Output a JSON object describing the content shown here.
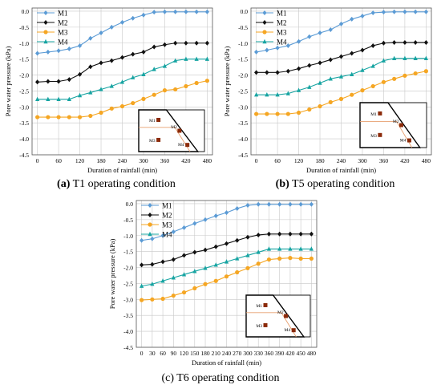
{
  "figure": {
    "captions": [
      {
        "letter": "(a)",
        "text": "T1 operating condition"
      },
      {
        "letter": "(b)",
        "text": "T5 operating condition"
      },
      {
        "letter": "(c)",
        "text": "T6 operating condition"
      }
    ]
  },
  "colors": {
    "M1": "#5b9bd5",
    "M2": "#111111",
    "M3": "#f5a623",
    "M4": "#17a4a2",
    "grid": "#c8c8c8",
    "inset_slope_line": "#e8a070",
    "inset_marker": "#8b2a0a"
  },
  "chart_data": [
    {
      "type": "line",
      "title": "",
      "xlabel": "Duration of rainfall (min)",
      "ylabel": "Pore water pressure (kPa)",
      "x": [
        0,
        30,
        60,
        90,
        120,
        150,
        180,
        210,
        240,
        270,
        300,
        330,
        360,
        390,
        420,
        450,
        480
      ],
      "xticks": [
        0,
        60,
        120,
        180,
        240,
        300,
        360,
        420,
        480
      ],
      "yticks": [
        0.0,
        -0.5,
        -1.0,
        -1.5,
        -2.0,
        -2.5,
        -3.0,
        -3.5,
        -4.0,
        -4.5
      ],
      "xlim": [
        -15,
        495
      ],
      "ylim": [
        -4.5,
        0.1
      ],
      "grid": true,
      "legend": "top-left",
      "series": [
        {
          "name": "M1",
          "marker": "diamond",
          "values": [
            -1.32,
            -1.28,
            -1.24,
            -1.18,
            -1.08,
            -0.85,
            -0.68,
            -0.5,
            -0.35,
            -0.22,
            -0.12,
            -0.03,
            -0.02,
            -0.02,
            -0.02,
            -0.02,
            -0.02
          ]
        },
        {
          "name": "M2",
          "marker": "diamond",
          "values": [
            -2.22,
            -2.2,
            -2.2,
            -2.14,
            -1.98,
            -1.74,
            -1.62,
            -1.55,
            -1.45,
            -1.35,
            -1.28,
            -1.12,
            -1.05,
            -1.0,
            -1.0,
            -1.0,
            -1.0
          ]
        },
        {
          "name": "M3",
          "marker": "circle",
          "values": [
            -3.32,
            -3.32,
            -3.32,
            -3.32,
            -3.32,
            -3.28,
            -3.18,
            -3.05,
            -2.98,
            -2.88,
            -2.75,
            -2.62,
            -2.48,
            -2.45,
            -2.35,
            -2.25,
            -2.18
          ]
        },
        {
          "name": "M4",
          "marker": "triangle",
          "values": [
            -2.76,
            -2.76,
            -2.76,
            -2.76,
            -2.64,
            -2.55,
            -2.45,
            -2.35,
            -2.22,
            -2.08,
            -1.98,
            -1.82,
            -1.72,
            -1.55,
            -1.5,
            -1.5,
            -1.5
          ]
        }
      ],
      "inset_labels": [
        "M1",
        "M2",
        "M3",
        "M4"
      ]
    },
    {
      "type": "line",
      "title": "",
      "xlabel": "Duration of rainfall (min)",
      "ylabel": "Pore water pressure (kPa)",
      "x": [
        0,
        30,
        60,
        90,
        120,
        150,
        180,
        210,
        240,
        270,
        300,
        330,
        360,
        390,
        420,
        450,
        480
      ],
      "xticks": [
        0,
        60,
        120,
        180,
        240,
        300,
        360,
        420,
        480
      ],
      "yticks": [
        0.0,
        -0.5,
        -1.0,
        -1.5,
        -2.0,
        -2.5,
        -3.0,
        -3.5,
        -4.0,
        -4.5
      ],
      "xlim": [
        -15,
        495
      ],
      "ylim": [
        -4.5,
        0.1
      ],
      "grid": true,
      "legend": "top-left",
      "series": [
        {
          "name": "M1",
          "marker": "diamond",
          "values": [
            -1.28,
            -1.22,
            -1.15,
            -1.08,
            -0.95,
            -0.8,
            -0.68,
            -0.58,
            -0.4,
            -0.25,
            -0.15,
            -0.05,
            -0.03,
            -0.02,
            -0.02,
            -0.02,
            -0.02
          ]
        },
        {
          "name": "M2",
          "marker": "diamond",
          "values": [
            -1.92,
            -1.92,
            -1.92,
            -1.88,
            -1.8,
            -1.7,
            -1.62,
            -1.52,
            -1.42,
            -1.32,
            -1.22,
            -1.08,
            -1.0,
            -0.98,
            -0.98,
            -0.98,
            -0.98
          ]
        },
        {
          "name": "M3",
          "marker": "circle",
          "values": [
            -3.22,
            -3.22,
            -3.22,
            -3.22,
            -3.18,
            -3.08,
            -2.98,
            -2.85,
            -2.75,
            -2.62,
            -2.48,
            -2.35,
            -2.22,
            -2.12,
            -2.02,
            -1.95,
            -1.88
          ]
        },
        {
          "name": "M4",
          "marker": "triangle",
          "values": [
            -2.62,
            -2.62,
            -2.62,
            -2.58,
            -2.48,
            -2.38,
            -2.25,
            -2.12,
            -2.05,
            -1.98,
            -1.85,
            -1.72,
            -1.55,
            -1.48,
            -1.48,
            -1.48,
            -1.48
          ]
        }
      ],
      "inset_labels": [
        "M1",
        "M2",
        "M3",
        "M4"
      ]
    },
    {
      "type": "line",
      "title": "",
      "xlabel": "Duration of rainfall (min)",
      "ylabel": "Pore water pressure (kPa)",
      "x": [
        0,
        30,
        60,
        90,
        120,
        150,
        180,
        210,
        240,
        270,
        300,
        330,
        360,
        390,
        420,
        450,
        480
      ],
      "xticks": [
        0,
        30,
        60,
        90,
        120,
        150,
        180,
        210,
        240,
        270,
        300,
        330,
        360,
        390,
        420,
        450,
        480
      ],
      "yticks": [
        0.0,
        -0.5,
        -1.0,
        -1.5,
        -2.0,
        -2.5,
        -3.0,
        -3.5,
        -4.0,
        -4.5
      ],
      "xlim": [
        -15,
        495
      ],
      "ylim": [
        -4.5,
        0.1
      ],
      "grid": true,
      "legend": "top-left",
      "series": [
        {
          "name": "M1",
          "marker": "diamond",
          "values": [
            -1.15,
            -1.1,
            -1.0,
            -0.88,
            -0.75,
            -0.62,
            -0.5,
            -0.38,
            -0.28,
            -0.15,
            -0.05,
            -0.02,
            -0.02,
            -0.02,
            -0.02,
            -0.02,
            -0.02
          ]
        },
        {
          "name": "M2",
          "marker": "diamond",
          "values": [
            -1.92,
            -1.9,
            -1.82,
            -1.75,
            -1.62,
            -1.52,
            -1.45,
            -1.35,
            -1.25,
            -1.15,
            -1.05,
            -0.98,
            -0.95,
            -0.95,
            -0.95,
            -0.95,
            -0.95
          ]
        },
        {
          "name": "M3",
          "marker": "circle",
          "values": [
            -3.02,
            -3.0,
            -2.98,
            -2.88,
            -2.78,
            -2.65,
            -2.52,
            -2.42,
            -2.28,
            -2.15,
            -2.02,
            -1.88,
            -1.75,
            -1.72,
            -1.7,
            -1.72,
            -1.72
          ]
        },
        {
          "name": "M4",
          "marker": "triangle",
          "values": [
            -2.58,
            -2.52,
            -2.42,
            -2.32,
            -2.22,
            -2.12,
            -2.02,
            -1.92,
            -1.82,
            -1.72,
            -1.62,
            -1.52,
            -1.42,
            -1.42,
            -1.42,
            -1.42,
            -1.42
          ]
        }
      ],
      "inset_labels": [
        "M1",
        "M2",
        "M3",
        "M4"
      ]
    }
  ]
}
